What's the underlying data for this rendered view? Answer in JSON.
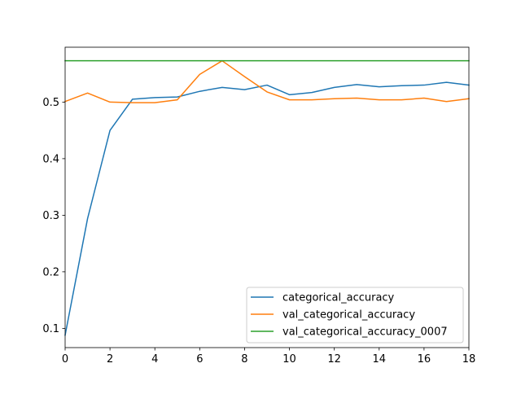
{
  "chart_data": {
    "type": "line",
    "title": "",
    "xlabel": "",
    "ylabel": "",
    "xlim": [
      0,
      18
    ],
    "ylim": [
      0.066,
      0.597
    ],
    "xticks": [
      0,
      2,
      4,
      6,
      8,
      10,
      12,
      14,
      16,
      18
    ],
    "yticks": [
      0.1,
      0.2,
      0.3,
      0.4,
      0.5
    ],
    "grid": false,
    "legend_position": "lower-right",
    "series": [
      {
        "name": "categorical_accuracy",
        "color": "#1f77b4",
        "x": [
          0,
          1,
          2,
          3,
          4,
          5,
          6,
          7,
          8,
          9,
          10,
          11,
          12,
          13,
          14,
          15,
          16,
          17,
          18
        ],
        "values": [
          0.088,
          0.294,
          0.45,
          0.505,
          0.508,
          0.509,
          0.519,
          0.526,
          0.522,
          0.53,
          0.513,
          0.517,
          0.526,
          0.531,
          0.527,
          0.529,
          0.53,
          0.535,
          0.53
        ]
      },
      {
        "name": "val_categorical_accuracy",
        "color": "#ff7f0e",
        "x": [
          0,
          1,
          2,
          3,
          4,
          5,
          6,
          7,
          8,
          9,
          10,
          11,
          12,
          13,
          14,
          15,
          16,
          17,
          18
        ],
        "values": [
          0.501,
          0.516,
          0.5,
          0.499,
          0.499,
          0.504,
          0.549,
          0.573,
          0.545,
          0.518,
          0.504,
          0.504,
          0.506,
          0.507,
          0.504,
          0.504,
          0.507,
          0.501,
          0.506
        ]
      },
      {
        "name": "val_categorical_accuracy_0007",
        "color": "#2ca02c",
        "x": [
          0,
          18
        ],
        "values": [
          0.573,
          0.573
        ]
      }
    ]
  }
}
